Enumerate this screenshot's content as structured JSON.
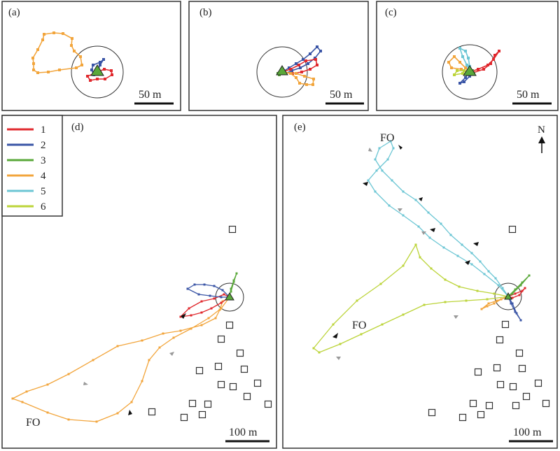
{
  "colors": {
    "1": "#e0282d",
    "2": "#3a55a6",
    "3": "#5aa83a",
    "4": "#f2a53c",
    "5": "#6cc6d4",
    "6": "#bcd43a",
    "frame": "#333333",
    "plot_bg": "#ffffff",
    "box": "#333333"
  },
  "legend": {
    "entries": [
      {
        "id": "1",
        "label": "1"
      },
      {
        "id": "2",
        "label": "2"
      },
      {
        "id": "3",
        "label": "3"
      },
      {
        "id": "4",
        "label": "4"
      },
      {
        "id": "5",
        "label": "5"
      },
      {
        "id": "6",
        "label": "6"
      }
    ]
  },
  "north_label": "N",
  "chart_data": [
    {
      "type": "scatter",
      "panel": "(a)",
      "scale_bar": "50 m",
      "tracks": [
        {
          "id": "4",
          "points": [
            [
              -91,
              12
            ],
            [
              -92,
              20
            ],
            [
              -85,
              32
            ],
            [
              -78,
              46
            ],
            [
              -76,
              54
            ],
            [
              -62,
              56
            ],
            [
              -49,
              55
            ],
            [
              -36,
              48
            ],
            [
              -37,
              38
            ],
            [
              -33,
              30
            ],
            [
              -24,
              22
            ],
            [
              -22,
              10
            ],
            [
              -30,
              6
            ],
            [
              -54,
              3
            ],
            [
              -70,
              0
            ],
            [
              -85,
              -1
            ],
            [
              -91,
              3
            ],
            [
              -91,
              12
            ]
          ]
        },
        {
          "id": "1",
          "points": [
            [
              0,
              0
            ],
            [
              10,
              4
            ],
            [
              20,
              2
            ],
            [
              21,
              -4
            ],
            [
              11,
              -10
            ],
            [
              0,
              -10
            ],
            [
              -10,
              -12
            ],
            [
              -14,
              -6
            ],
            [
              -4,
              -2
            ],
            [
              0,
              0
            ]
          ]
        },
        {
          "id": "2",
          "points": [
            [
              0,
              0
            ],
            [
              4,
              10
            ],
            [
              9,
              18
            ],
            [
              4,
              14
            ],
            [
              -6,
              10
            ],
            [
              -8,
              3
            ],
            [
              -5,
              -4
            ],
            [
              0,
              0
            ]
          ]
        },
        {
          "id": "3",
          "points": [
            [
              0,
              0
            ],
            [
              2,
              2
            ],
            [
              4,
              0
            ]
          ]
        }
      ]
    },
    {
      "type": "scatter",
      "panel": "(b)",
      "scale_bar": "50 m",
      "tracks": [
        {
          "id": "2",
          "points": [
            [
              0,
              0
            ],
            [
              10,
              6
            ],
            [
              20,
              12
            ],
            [
              30,
              18
            ],
            [
              40,
              26
            ],
            [
              50,
              36
            ],
            [
              55,
              30
            ],
            [
              47,
              20
            ],
            [
              37,
              12
            ],
            [
              26,
              6
            ],
            [
              14,
              2
            ],
            [
              5,
              -2
            ],
            [
              0,
              0
            ]
          ]
        },
        {
          "id": "1",
          "points": [
            [
              0,
              0
            ],
            [
              12,
              4
            ],
            [
              24,
              10
            ],
            [
              34,
              16
            ],
            [
              48,
              18
            ],
            [
              50,
              10
            ],
            [
              40,
              4
            ],
            [
              28,
              0
            ],
            [
              15,
              -2
            ],
            [
              0,
              0
            ]
          ]
        },
        {
          "id": "4",
          "points": [
            [
              0,
              0
            ],
            [
              12,
              -2
            ],
            [
              20,
              -8
            ],
            [
              25,
              -16
            ],
            [
              35,
              -18
            ],
            [
              44,
              -18
            ],
            [
              45,
              -10
            ],
            [
              32,
              -6
            ],
            [
              20,
              -2
            ],
            [
              0,
              0
            ]
          ]
        },
        {
          "id": "3",
          "points": [
            [
              0,
              0
            ],
            [
              -4,
              -4
            ],
            [
              -6,
              -2
            ]
          ]
        }
      ]
    },
    {
      "type": "scatter",
      "panel": "(c)",
      "scale_bar": "50 m",
      "tracks": [
        {
          "id": "1",
          "points": [
            [
              0,
              0
            ],
            [
              12,
              4
            ],
            [
              26,
              10
            ],
            [
              34,
              18
            ],
            [
              42,
              30
            ],
            [
              36,
              24
            ],
            [
              30,
              12
            ],
            [
              20,
              4
            ],
            [
              5,
              -1
            ],
            [
              0,
              0
            ]
          ]
        },
        {
          "id": "5",
          "points": [
            [
              0,
              0
            ],
            [
              -4,
              10
            ],
            [
              -10,
              22
            ],
            [
              -14,
              34
            ],
            [
              -6,
              30
            ],
            [
              -2,
              20
            ],
            [
              0,
              8
            ],
            [
              0,
              0
            ]
          ]
        },
        {
          "id": "4",
          "points": [
            [
              0,
              0
            ],
            [
              -12,
              4
            ],
            [
              -26,
              6
            ],
            [
              -30,
              14
            ],
            [
              -22,
              22
            ],
            [
              -14,
              14
            ],
            [
              -6,
              6
            ],
            [
              0,
              0
            ]
          ]
        },
        {
          "id": "6",
          "points": [
            [
              0,
              0
            ],
            [
              -10,
              -2
            ],
            [
              -22,
              -4
            ],
            [
              -18,
              2
            ],
            [
              -8,
              2
            ],
            [
              0,
              0
            ]
          ]
        },
        {
          "id": "2",
          "points": [
            [
              0,
              0
            ],
            [
              -6,
              -8
            ],
            [
              -14,
              -16
            ],
            [
              -8,
              -14
            ],
            [
              0,
              -6
            ],
            [
              0,
              0
            ]
          ]
        },
        {
          "id": "3",
          "points": [
            [
              0,
              0
            ],
            [
              4,
              2
            ],
            [
              6,
              -2
            ]
          ]
        }
      ]
    },
    {
      "type": "scatter",
      "panel": "(d)",
      "scale_bar": "100 m",
      "annotation": "FO",
      "tracks": [
        {
          "id": "4",
          "points": [
            [
              0,
              0
            ],
            [
              -10,
              -6
            ],
            [
              -14,
              -18
            ],
            [
              -20,
              -30
            ],
            [
              -40,
              -40
            ],
            [
              -70,
              -48
            ],
            [
              -95,
              -52
            ],
            [
              -125,
              -62
            ],
            [
              -160,
              -70
            ],
            [
              -195,
              -90
            ],
            [
              -230,
              -110
            ],
            [
              -260,
              -125
            ],
            [
              -290,
              -135
            ],
            [
              -310,
              -145
            ],
            [
              -296,
              -150
            ],
            [
              -260,
              -165
            ],
            [
              -230,
              -175
            ],
            [
              -190,
              -178
            ],
            [
              -160,
              -166
            ],
            [
              -140,
              -150
            ],
            [
              -125,
              -120
            ],
            [
              -115,
              -90
            ],
            [
              -100,
              -72
            ],
            [
              -80,
              -58
            ],
            [
              -55,
              -45
            ],
            [
              -30,
              -30
            ],
            [
              -12,
              -16
            ],
            [
              0,
              0
            ]
          ]
        },
        {
          "id": "1",
          "points": [
            [
              0,
              0
            ],
            [
              -12,
              -8
            ],
            [
              -26,
              -16
            ],
            [
              -40,
              -22
            ],
            [
              -55,
              -26
            ],
            [
              -70,
              -28
            ],
            [
              -58,
              -16
            ],
            [
              -40,
              -6
            ],
            [
              -22,
              -2
            ],
            [
              -8,
              4
            ],
            [
              0,
              0
            ]
          ]
        },
        {
          "id": "2",
          "points": [
            [
              0,
              0
            ],
            [
              -10,
              10
            ],
            [
              -22,
              16
            ],
            [
              -36,
              18
            ],
            [
              -50,
              18
            ],
            [
              -60,
              12
            ],
            [
              -44,
              4
            ],
            [
              -28,
              2
            ],
            [
              -12,
              0
            ],
            [
              0,
              0
            ]
          ]
        },
        {
          "id": "3",
          "points": [
            [
              0,
              0
            ],
            [
              2,
              12
            ],
            [
              6,
              24
            ],
            [
              10,
              34
            ],
            [
              6,
              22
            ],
            [
              2,
              8
            ]
          ]
        }
      ]
    },
    {
      "type": "scatter",
      "panel": "(e)",
      "scale_bar": "100 m",
      "annotations": [
        "FO",
        "FO"
      ],
      "tracks": [
        {
          "id": "5",
          "points": [
            [
              0,
              0
            ],
            [
              -8,
              12
            ],
            [
              -18,
              26
            ],
            [
              -28,
              36
            ],
            [
              -40,
              50
            ],
            [
              -52,
              62
            ],
            [
              -66,
              74
            ],
            [
              -82,
              88
            ],
            [
              -96,
              104
            ],
            [
              -114,
              120
            ],
            [
              -132,
              138
            ],
            [
              -150,
              150
            ],
            [
              -166,
              166
            ],
            [
              -180,
              180
            ],
            [
              -190,
              196
            ],
            [
              -184,
              212
            ],
            [
              -168,
              222
            ],
            [
              -164,
              212
            ],
            [
              -172,
              196
            ],
            [
              -188,
              180
            ],
            [
              -200,
              166
            ],
            [
              -190,
              150
            ],
            [
              -170,
              130
            ],
            [
              -150,
              116
            ],
            [
              -128,
              100
            ],
            [
              -112,
              84
            ],
            [
              -92,
              70
            ],
            [
              -72,
              58
            ],
            [
              -52,
              46
            ],
            [
              -34,
              32
            ],
            [
              -14,
              16
            ],
            [
              0,
              0
            ]
          ]
        },
        {
          "id": "6",
          "points": [
            [
              0,
              0
            ],
            [
              -20,
              4
            ],
            [
              -44,
              8
            ],
            [
              -70,
              14
            ],
            [
              -90,
              24
            ],
            [
              -110,
              40
            ],
            [
              -126,
              56
            ],
            [
              -132,
              74
            ],
            [
              -150,
              44
            ],
            [
              -182,
              18
            ],
            [
              -216,
              -6
            ],
            [
              -250,
              -40
            ],
            [
              -278,
              -74
            ],
            [
              -270,
              -80
            ],
            [
              -240,
              -68
            ],
            [
              -210,
              -54
            ],
            [
              -180,
              -40
            ],
            [
              -150,
              -26
            ],
            [
              -120,
              -12
            ],
            [
              -90,
              -8
            ],
            [
              -60,
              -6
            ],
            [
              -30,
              -4
            ],
            [
              0,
              0
            ]
          ]
        },
        {
          "id": "4",
          "points": [
            [
              0,
              0
            ],
            [
              -10,
              -4
            ],
            [
              -20,
              -10
            ],
            [
              -30,
              -14
            ],
            [
              -38,
              -18
            ],
            [
              -28,
              -10
            ],
            [
              -16,
              -6
            ],
            [
              0,
              0
            ]
          ]
        },
        {
          "id": "1",
          "points": [
            [
              0,
              0
            ],
            [
              10,
              4
            ],
            [
              20,
              8
            ],
            [
              24,
              12
            ],
            [
              16,
              2
            ],
            [
              6,
              -2
            ],
            [
              0,
              0
            ]
          ]
        },
        {
          "id": "2",
          "points": [
            [
              0,
              0
            ],
            [
              6,
              -10
            ],
            [
              12,
              -24
            ],
            [
              18,
              -34
            ],
            [
              10,
              -22
            ],
            [
              4,
              -10
            ],
            [
              0,
              0
            ]
          ]
        },
        {
          "id": "3",
          "points": [
            [
              0,
              0
            ],
            [
              10,
              10
            ],
            [
              20,
              20
            ],
            [
              30,
              30
            ],
            [
              18,
              16
            ],
            [
              6,
              4
            ],
            [
              0,
              0
            ]
          ]
        }
      ]
    }
  ]
}
